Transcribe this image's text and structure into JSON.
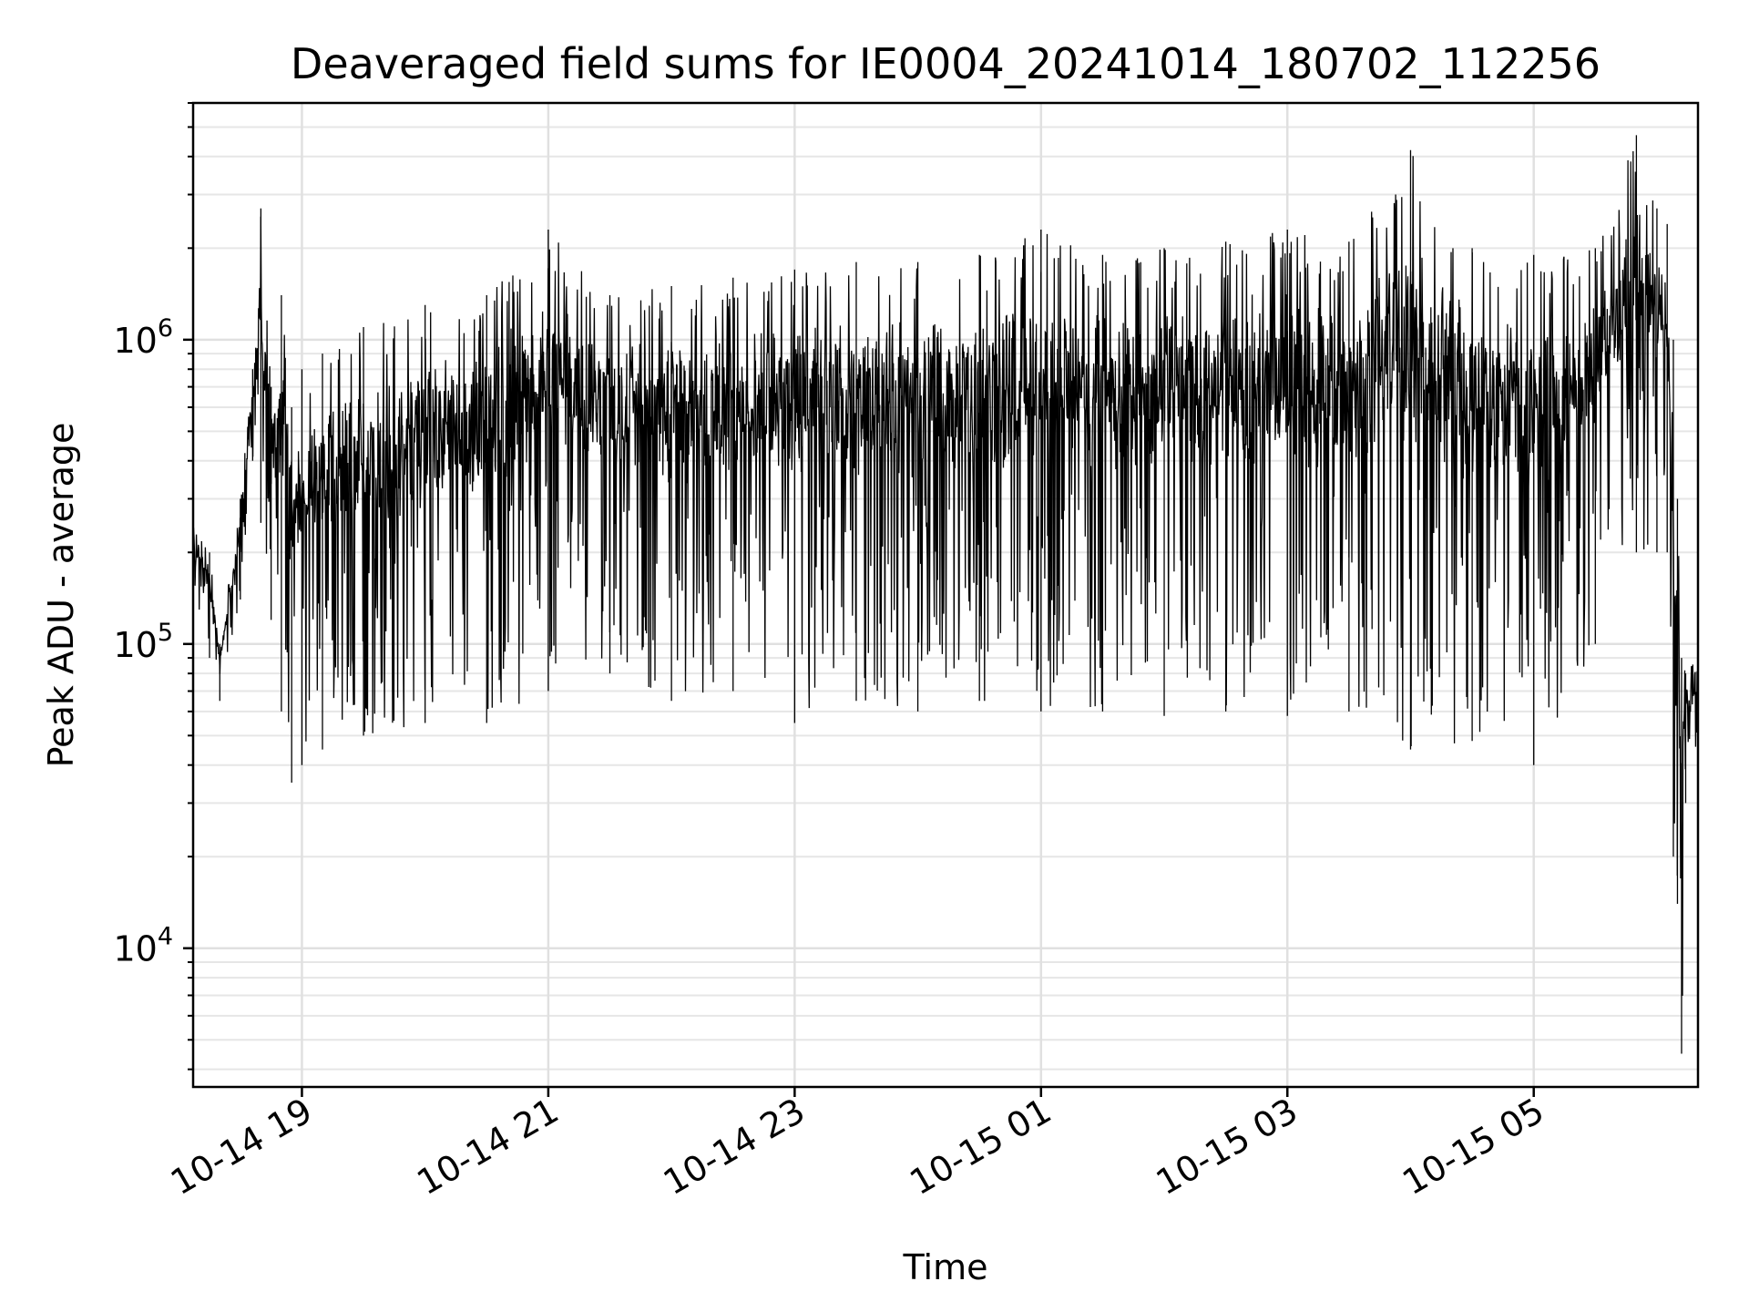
{
  "chart_data": {
    "type": "line",
    "title": "Deaveraged field sums for IE0004_20241014_180702_112256",
    "xlabel": "Time",
    "ylabel": "Peak ADU - average",
    "y_scale": "log",
    "ylim": [
      3500,
      6000000
    ],
    "xlim": [
      "2024-10-14 18:07",
      "2024-10-15 06:20"
    ],
    "x_ticks": [
      {
        "value": "2024-10-14 19:00",
        "label": "10-14 19"
      },
      {
        "value": "2024-10-14 21:00",
        "label": "10-14 21"
      },
      {
        "value": "2024-10-14 23:00",
        "label": "10-14 23"
      },
      {
        "value": "2024-10-15 01:00",
        "label": "10-15 01"
      },
      {
        "value": "2024-10-15 03:00",
        "label": "10-15 03"
      },
      {
        "value": "2024-10-15 05:00",
        "label": "10-15 05"
      }
    ],
    "y_ticks": [
      {
        "value": 10000,
        "base": "10",
        "exp": "4"
      },
      {
        "value": 100000,
        "base": "10",
        "exp": "5"
      },
      {
        "value": 1000000,
        "base": "10",
        "exp": "6"
      }
    ],
    "grid": true,
    "grid_minor": true,
    "line_color": "#000000",
    "series": [
      {
        "x": [
          "2024-10-14 18:07",
          "2024-10-14 18:15",
          "2024-10-14 18:20",
          "2024-10-14 18:30",
          "2024-10-14 18:36",
          "2024-10-14 18:40",
          "2024-10-14 18:45",
          "2024-10-14 18:50",
          "2024-10-14 18:55",
          "2024-10-14 19:00",
          "2024-10-14 19:10",
          "2024-10-14 19:30",
          "2024-10-14 20:00",
          "2024-10-14 20:30",
          "2024-10-14 21:00",
          "2024-10-14 21:30",
          "2024-10-14 22:00",
          "2024-10-14 22:30",
          "2024-10-14 23:00",
          "2024-10-14 23:30",
          "2024-10-15 00:00",
          "2024-10-15 00:30",
          "2024-10-15 01:00",
          "2024-10-15 01:30",
          "2024-10-15 02:00",
          "2024-10-15 02:30",
          "2024-10-15 03:00",
          "2024-10-15 03:30",
          "2024-10-15 04:00",
          "2024-10-15 04:30",
          "2024-10-15 05:00",
          "2024-10-15 05:30",
          "2024-10-15 05:50",
          "2024-10-15 06:00",
          "2024-10-15 06:05",
          "2024-10-15 06:08",
          "2024-10-15 06:10",
          "2024-10-15 06:12",
          "2024-10-15 06:14",
          "2024-10-15 06:20"
        ],
        "upper": [
          250000,
          200000,
          100000,
          300000,
          800000,
          2700000,
          700000,
          1400000,
          600000,
          800000,
          900000,
          1100000,
          1300000,
          1400000,
          2300000,
          1400000,
          1500000,
          1600000,
          1700000,
          1800000,
          1800000,
          1900000,
          2300000,
          1900000,
          2000000,
          2100000,
          2300000,
          2100000,
          4200000,
          2000000,
          1900000,
          2000000,
          4700000,
          2700000,
          2400000,
          1000000,
          300000,
          90000,
          80000,
          95000
        ],
        "lower": [
          150000,
          90000,
          65000,
          140000,
          400000,
          250000,
          120000,
          60000,
          35000,
          40000,
          45000,
          50000,
          55000,
          55000,
          70000,
          80000,
          65000,
          70000,
          55000,
          65000,
          60000,
          65000,
          60000,
          60000,
          58000,
          60000,
          58000,
          60000,
          45000,
          48000,
          40000,
          100000,
          200000,
          200000,
          200000,
          20000,
          14000,
          4500,
          30000,
          50000
        ]
      }
    ]
  }
}
